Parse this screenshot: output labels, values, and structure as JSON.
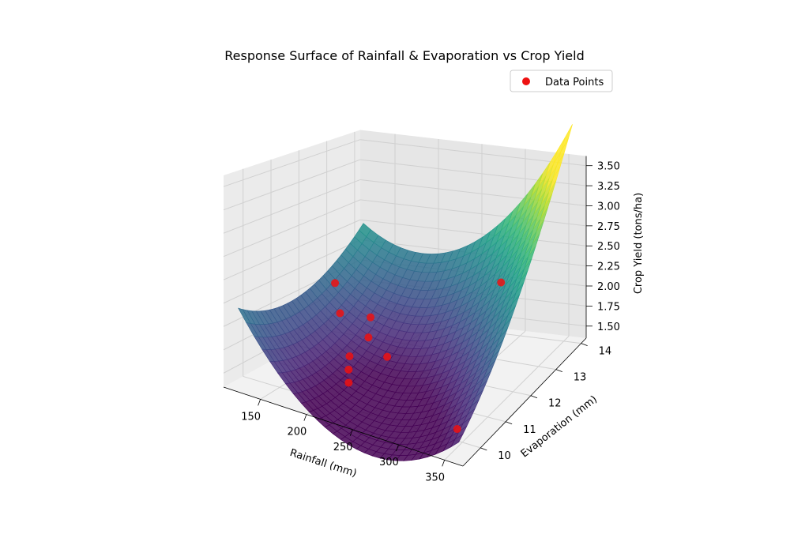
{
  "chart_data": {
    "type": "surface3d",
    "title": "Response Surface of Rainfall & Evaporation vs Crop Yield",
    "xlabel": "Rainfall (mm)",
    "ylabel": "Evaporation (mm)",
    "zlabel": "Crop Yield (tons/ha)",
    "xlim": [
      110,
      370
    ],
    "ylim": [
      9.3,
      14.2
    ],
    "zlim": [
      1.35,
      3.62
    ],
    "xticks": [
      150,
      200,
      250,
      300,
      350
    ],
    "yticks": [
      10,
      11,
      12,
      13,
      14
    ],
    "zticks": [
      "1.50",
      "1.75",
      "2.00",
      "2.25",
      "2.50",
      "2.75",
      "3.00",
      "3.25",
      "3.50"
    ],
    "surface": {
      "x_range": [
        120,
        360
      ],
      "y_range": [
        9.5,
        14
      ],
      "colormap": "viridis",
      "z_corners": {
        "x120_y9.5": 2.2,
        "x360_y9.5": 1.52,
        "x360_y14": 3.5,
        "x120_y14": 2.5
      }
    },
    "scatter": {
      "name": "Data Points",
      "color": "#ee1111",
      "points": [
        {
          "x": 135,
          "y": 12.5,
          "z": 2.05
        },
        {
          "x": 150,
          "y": 12.2,
          "z": 1.78
        },
        {
          "x": 172,
          "y": 12.6,
          "z": 1.7
        },
        {
          "x": 185,
          "y": 11.4,
          "z": 1.52
        },
        {
          "x": 188,
          "y": 12.0,
          "z": 1.62
        },
        {
          "x": 196,
          "y": 11.0,
          "z": 1.48
        },
        {
          "x": 205,
          "y": 10.7,
          "z": 1.42
        },
        {
          "x": 215,
          "y": 11.8,
          "z": 1.5
        },
        {
          "x": 290,
          "y": 13.6,
          "z": 2.1
        },
        {
          "x": 350,
          "y": 9.8,
          "z": 1.55
        }
      ]
    },
    "legend": {
      "placement": "top-right",
      "label": "Data Points"
    }
  }
}
